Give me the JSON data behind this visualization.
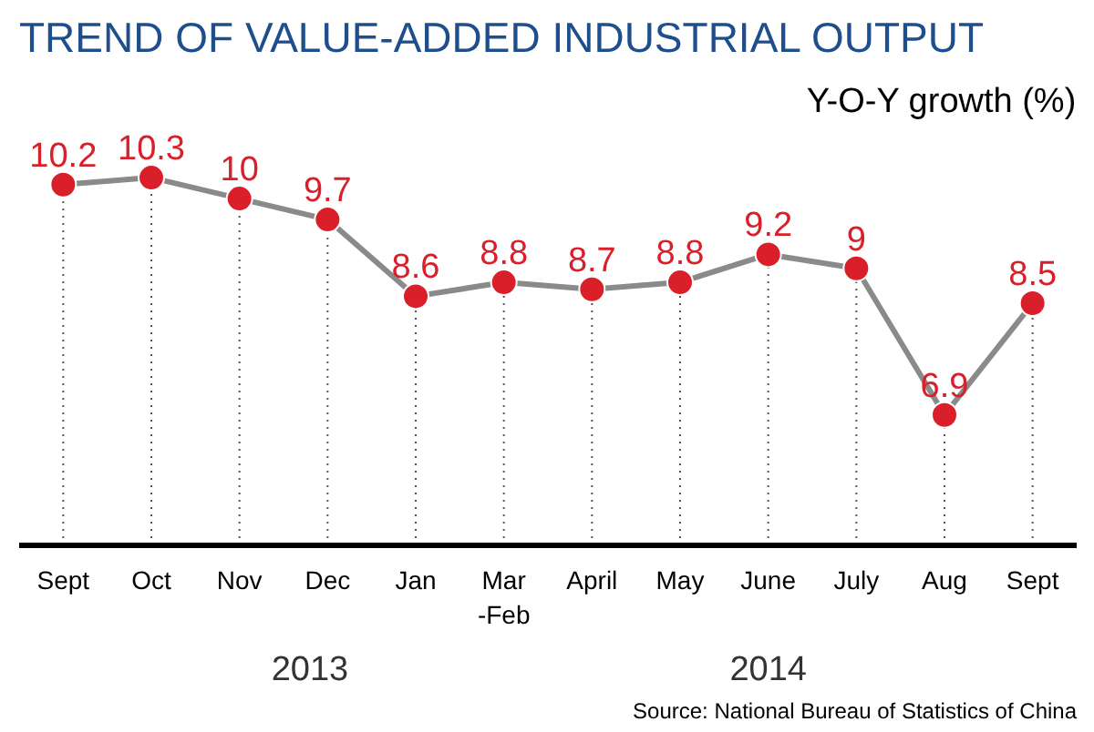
{
  "chart_data": {
    "type": "line",
    "title": "TREND OF VALUE-ADDED INDUSTRIAL OUTPUT",
    "subtitle": "Y-O-Y growth (%)",
    "categories": [
      "Sept",
      "Oct",
      "Nov",
      "Dec",
      "Jan",
      "Mar\n-Feb",
      "April",
      "May",
      "June",
      "July",
      "Aug",
      "Sept"
    ],
    "series": [
      {
        "color": "#d9202a",
        "values": [
          10.2,
          10.3,
          10,
          9.7,
          8.6,
          8.8,
          8.7,
          8.8,
          9.2,
          9,
          6.9,
          8.5
        ]
      }
    ],
    "tick_labels": "x",
    "grid": "x",
    "marker": "circle",
    "line_style": "solid",
    "data_labels": true,
    "annotations": [
      "2013",
      "2014",
      "Source: National Bureau of Statistics of China"
    ]
  }
}
